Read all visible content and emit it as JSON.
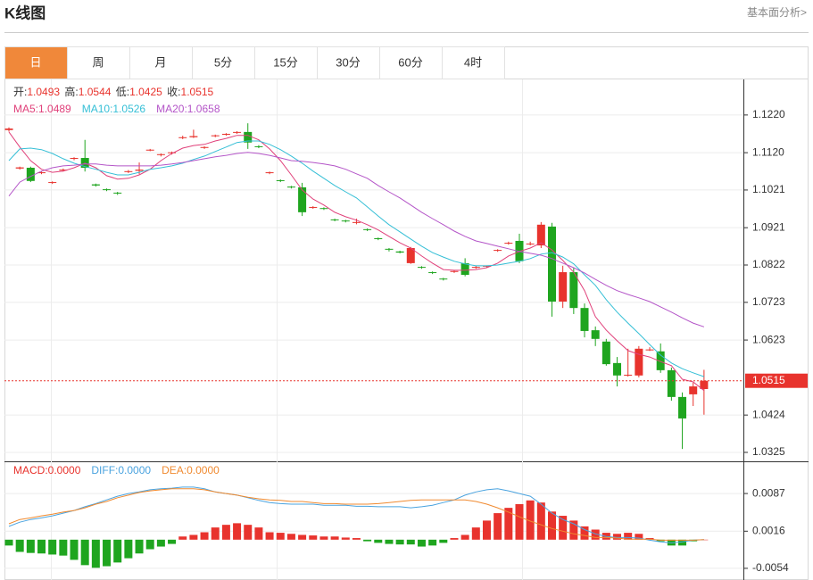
{
  "header": {
    "title": "K线图",
    "link": "基本面分析>"
  },
  "tabs": [
    "日",
    "周",
    "月",
    "5分",
    "15分",
    "30分",
    "60分",
    "4时"
  ],
  "active_tab": 0,
  "chart_data": [
    {
      "type": "candlestick",
      "info_labels": [
        "开:",
        "高:",
        "低:",
        "收:"
      ],
      "open": [
        1.118,
        1.1078,
        1.108,
        1.1066,
        1.104,
        1.1073,
        1.1104,
        1.1106,
        1.1036,
        1.1023,
        1.1014,
        1.1069,
        1.1072,
        1.1126,
        1.1114,
        1.1119,
        1.1159,
        1.1161,
        1.1133,
        1.1164,
        1.1168,
        1.1173,
        1.1175,
        1.1137,
        1.1066,
        1.1047,
        1.103,
        1.1028,
        1.0974,
        1.0973,
        1.0943,
        1.094,
        1.0934,
        1.0917,
        1.0893,
        1.0865,
        1.0858,
        1.0827,
        1.0817,
        1.0803,
        1.0786,
        1.0804,
        1.0827,
        1.0815,
        1.0818,
        1.086,
        1.0879,
        1.0886,
        1.0877,
        1.0874,
        1.0924,
        1.0725,
        1.0803,
        1.0708,
        1.0649,
        1.0619,
        1.0562,
        1.0529,
        1.0529,
        1.0596,
        1.0593,
        1.0543,
        1.0472,
        1.0479,
        1.0493
      ],
      "high": [
        1.1187,
        1.1083,
        1.1083,
        1.107,
        1.1044,
        1.1078,
        1.1108,
        1.1154,
        1.1038,
        1.1025,
        1.1016,
        1.1074,
        1.1094,
        1.113,
        1.1118,
        1.1123,
        1.1165,
        1.1181,
        1.1137,
        1.1168,
        1.1172,
        1.1177,
        1.1198,
        1.114,
        1.107,
        1.1049,
        1.1032,
        1.104,
        1.0978,
        1.0975,
        1.0945,
        1.0942,
        1.0945,
        1.0919,
        1.0895,
        1.0867,
        1.086,
        1.087,
        1.0819,
        1.0805,
        1.0788,
        1.0808,
        1.084,
        1.082,
        1.0821,
        1.0864,
        1.0884,
        1.0905,
        1.0884,
        1.0936,
        1.0934,
        1.082,
        1.0815,
        1.072,
        1.0659,
        1.0626,
        1.0578,
        1.06,
        1.0607,
        1.0604,
        1.0614,
        1.055,
        1.0484,
        1.051,
        1.0544
      ],
      "low": [
        1.1176,
        1.1075,
        1.1042,
        1.1063,
        1.1037,
        1.107,
        1.11,
        1.107,
        1.103,
        1.1018,
        1.1008,
        1.1066,
        1.1063,
        1.1124,
        1.111,
        1.1115,
        1.1156,
        1.1159,
        1.113,
        1.1161,
        1.1165,
        1.117,
        1.113,
        1.1132,
        1.1063,
        1.1042,
        1.1025,
        1.0952,
        1.0971,
        1.0968,
        1.0938,
        1.0935,
        1.093,
        1.0912,
        1.0888,
        1.0858,
        1.0853,
        1.0825,
        1.0812,
        1.0798,
        1.0781,
        1.0801,
        1.0792,
        1.0812,
        1.0815,
        1.0857,
        1.0876,
        1.0827,
        1.0874,
        1.0867,
        1.0685,
        1.0708,
        1.0692,
        1.063,
        1.0607,
        1.0555,
        1.05,
        1.0526,
        1.0524,
        1.0594,
        1.0536,
        1.0462,
        1.0334,
        1.0448,
        1.0425
      ],
      "close": [
        1.1184,
        1.1081,
        1.1045,
        1.1068,
        1.1042,
        1.1075,
        1.1106,
        1.108,
        1.1033,
        1.1021,
        1.1012,
        1.1071,
        1.1075,
        1.1128,
        1.1116,
        1.1121,
        1.1161,
        1.1164,
        1.1135,
        1.1166,
        1.117,
        1.1175,
        1.1147,
        1.1135,
        1.1068,
        1.1045,
        1.1028,
        1.0962,
        1.0976,
        1.0971,
        1.0941,
        1.0938,
        1.0936,
        1.0915,
        1.0891,
        1.0863,
        1.0855,
        1.0867,
        1.0815,
        1.0801,
        1.0784,
        1.0806,
        1.0796,
        1.0817,
        1.082,
        1.0862,
        1.0881,
        1.0832,
        1.0879,
        1.0929,
        1.0725,
        1.0803,
        1.0708,
        1.0647,
        1.0626,
        1.0559,
        1.0529,
        1.0531,
        1.06,
        1.0598,
        1.0543,
        1.0472,
        1.0415,
        1.05,
        1.0515
      ],
      "up_color": "#e8332d",
      "down_color": "#1fa51f",
      "series": [
        {
          "name": "MA5:",
          "color": "#e0407a",
          "values": [
            1.1175,
            1.1135,
            1.1099,
            1.1076,
            1.1068,
            1.1071,
            1.108,
            1.1092,
            1.108,
            1.1059,
            1.105,
            1.1052,
            1.1061,
            1.1076,
            1.1099,
            1.1118,
            1.1132,
            1.1139,
            1.1142,
            1.1151,
            1.1158,
            1.1166,
            1.1166,
            1.1154,
            1.113,
            1.1099,
            1.1061,
            1.1021,
            1.0997,
            1.0981,
            1.0962,
            1.095,
            1.0941,
            1.0929,
            1.0915,
            1.0898,
            1.0881,
            1.0867,
            1.0846,
            1.0827,
            1.081,
            1.0808,
            1.0808,
            1.081,
            1.0815,
            1.0827,
            1.0846,
            1.0858,
            1.0867,
            1.0881,
            1.0862,
            1.0834,
            1.0803,
            1.0754,
            1.0685,
            1.0649,
            1.0621,
            1.0595,
            1.0585,
            1.0578,
            1.0566,
            1.0555,
            1.0519,
            1.0512,
            1.0489
          ]
        },
        {
          "name": "MA10:",
          "color": "#35bfd6",
          "values": [
            1.1099,
            1.113,
            1.1132,
            1.1128,
            1.1118,
            1.1104,
            1.1092,
            1.1083,
            1.1076,
            1.1068,
            1.1061,
            1.1061,
            1.1068,
            1.1076,
            1.108,
            1.1085,
            1.1092,
            1.1102,
            1.1111,
            1.1123,
            1.1135,
            1.1147,
            1.1151,
            1.1151,
            1.1142,
            1.1128,
            1.1111,
            1.1092,
            1.1071,
            1.1052,
            1.1033,
            1.1016,
            1.1,
            1.0976,
            1.0952,
            1.0929,
            1.091,
            1.0891,
            1.0872,
            1.0855,
            1.0843,
            1.0832,
            1.0825,
            1.082,
            1.082,
            1.0822,
            1.0827,
            1.0832,
            1.0839,
            1.0851,
            1.0855,
            1.0843,
            1.0825,
            1.0796,
            1.0768,
            1.073,
            1.0697,
            1.0668,
            1.064,
            1.0611,
            1.0583,
            1.0562,
            1.0547,
            1.0536,
            1.0526
          ]
        },
        {
          "name": "MA20:",
          "color": "#b455c8",
          "values": [
            1.1005,
            1.1042,
            1.1057,
            1.1071,
            1.108,
            1.1085,
            1.1087,
            1.109,
            1.109,
            1.1087,
            1.1085,
            1.1085,
            1.1085,
            1.1085,
            1.1087,
            1.109,
            1.1094,
            1.1099,
            1.1104,
            1.1109,
            1.1113,
            1.1118,
            1.1121,
            1.1118,
            1.1113,
            1.1106,
            1.1099,
            1.1097,
            1.1094,
            1.109,
            1.1085,
            1.1076,
            1.1064,
            1.1052,
            1.1033,
            1.1016,
            1.1,
            1.0981,
            1.0962,
            1.0945,
            1.0929,
            1.0912,
            1.0898,
            1.0886,
            1.0879,
            1.0872,
            1.0865,
            1.0858,
            1.0853,
            1.0848,
            1.0839,
            1.0827,
            1.0815,
            1.0801,
            1.0784,
            1.0768,
            1.0754,
            1.0744,
            1.0735,
            1.0725,
            1.0711,
            1.0697,
            1.0682,
            1.0668,
            1.0658
          ]
        }
      ],
      "ylim": [
        1.0306,
        1.1312
      ],
      "yticks": [
        {
          "value": 1.122,
          "label": "1.1220"
        },
        {
          "value": 1.112,
          "label": "1.1120"
        },
        1.1021,
        1.0921,
        1.0822,
        1.0723,
        1.0623,
        1.0424,
        1.0325
      ],
      "grid": true
    },
    {
      "type": "macd",
      "histogram": {
        "name": "MACD:",
        "value_label": "0.0000",
        "up_color": "#e8332d",
        "down_color": "#1fa51f",
        "values": [
          -0.0011,
          -0.0023,
          -0.0025,
          -0.0026,
          -0.0028,
          -0.003,
          -0.0038,
          -0.0048,
          -0.0053,
          -0.005,
          -0.0043,
          -0.0035,
          -0.0026,
          -0.0018,
          -0.0013,
          -0.0008,
          0.0006,
          0.0009,
          0.0014,
          0.0023,
          0.0028,
          0.0031,
          0.0028,
          0.0023,
          0.0014,
          0.0013,
          0.0011,
          0.0009,
          0.0008,
          0.0006,
          0.0006,
          0.0004,
          0.0003,
          -0.0003,
          -0.0006,
          -0.0008,
          -0.0009,
          -0.0009,
          -0.0013,
          -0.0011,
          -0.0006,
          0.0003,
          0.0009,
          0.0023,
          0.0036,
          0.005,
          0.006,
          0.0067,
          0.0074,
          0.007,
          0.0053,
          0.0045,
          0.0036,
          0.0025,
          0.0019,
          0.0013,
          0.0011,
          0.0013,
          0.0011,
          0.0003,
          -0.0003,
          -0.0011,
          -0.0011,
          -0.0003,
          0.0
        ]
      },
      "series": [
        {
          "name": "DIFF:",
          "value_label": "0.0000",
          "color": "#4aa3df",
          "values": [
            0.0025,
            0.0033,
            0.0038,
            0.0041,
            0.0045,
            0.005,
            0.0055,
            0.0062,
            0.0068,
            0.0075,
            0.0082,
            0.0087,
            0.009,
            0.0094,
            0.0096,
            0.0097,
            0.0099,
            0.0099,
            0.0096,
            0.009,
            0.0087,
            0.0084,
            0.0079,
            0.0074,
            0.007,
            0.0068,
            0.0067,
            0.0067,
            0.0067,
            0.0065,
            0.0065,
            0.0065,
            0.0063,
            0.0063,
            0.0062,
            0.0062,
            0.0062,
            0.006,
            0.0062,
            0.0065,
            0.007,
            0.0075,
            0.0084,
            0.009,
            0.0094,
            0.0096,
            0.0092,
            0.0087,
            0.0082,
            0.0067,
            0.005,
            0.0038,
            0.003,
            0.0019,
            0.0011,
            0.0006,
            0.0004,
            0.0004,
            0.0003,
            -0.0001,
            -0.0004,
            -0.0006,
            -0.0004,
            -0.0001,
            0.0
          ]
        },
        {
          "name": "DEA:",
          "value_label": "0.0000",
          "color": "#f08a30",
          "values": [
            0.003,
            0.0038,
            0.0041,
            0.0045,
            0.0048,
            0.0052,
            0.0055,
            0.006,
            0.0067,
            0.0072,
            0.0079,
            0.0084,
            0.0089,
            0.0092,
            0.0094,
            0.0096,
            0.0096,
            0.0096,
            0.0094,
            0.009,
            0.0087,
            0.0084,
            0.008,
            0.0077,
            0.0075,
            0.0074,
            0.0072,
            0.0072,
            0.007,
            0.0068,
            0.0068,
            0.0067,
            0.0067,
            0.0067,
            0.0068,
            0.007,
            0.0072,
            0.0074,
            0.0075,
            0.0075,
            0.0075,
            0.0075,
            0.0075,
            0.0072,
            0.0067,
            0.006,
            0.0052,
            0.0043,
            0.0035,
            0.0028,
            0.0021,
            0.0016,
            0.0011,
            0.0008,
            0.0004,
            0.0004,
            0.0003,
            0.0001,
            0.0001,
            0.0001,
            -0.0001,
            -0.0001,
            -0.0001,
            -0.0001,
            0.0
          ]
        }
      ],
      "ylim": [
        -0.0076,
        0.0146
      ],
      "yticks": [
        0.0087,
        0.0016,
        -0.0054
      ],
      "grid": true
    }
  ]
}
